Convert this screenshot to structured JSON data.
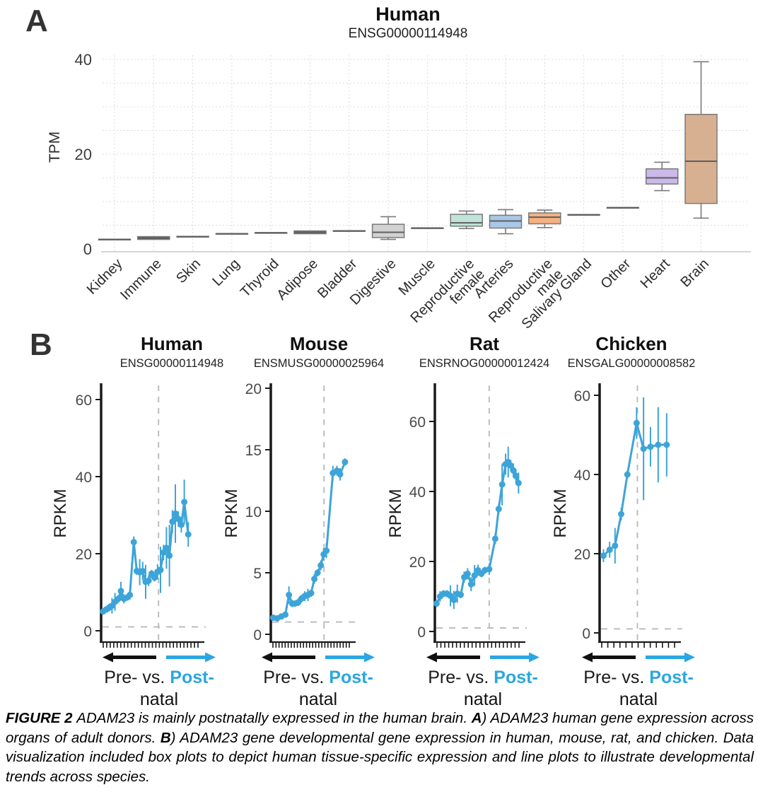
{
  "panel_a": {
    "label": "A"
  },
  "panel_b": {
    "label": "B",
    "pre_label": "Pre-",
    "vs_label": "vs.",
    "post_label": "Post-",
    "natal_label": "natal"
  },
  "colors": {
    "line_blue": "#3da4d8",
    "post_blue": "#2ba6e2",
    "grid": "#dcdcdc",
    "dash_gray": "#bdbdbd",
    "axis_dark": "#1a1a1a",
    "box_border": "#7a7a7a",
    "heart_purple": "#cbb9ea",
    "brain_tan": "#d7b091",
    "repro_female_teal": "#bfe5da",
    "arteries_blue": "#a9c7e6",
    "repro_male_orange": "#f4b183"
  },
  "caption": {
    "segments": [
      {
        "t": "FIGURE 2 ",
        "b": true
      },
      {
        "t": "ADAM23 is mainly postnatally expressed in the human brain. ",
        "b": false
      },
      {
        "t": "A",
        "b": true
      },
      {
        "t": ") ADAM23 human gene expression across organs of adult donors. ",
        "b": false
      },
      {
        "t": "B",
        "b": true
      },
      {
        "t": ") ADAM23 gene developmental gene expression in human, mouse, rat, and chicken. Data visualization included box plots to depict human tissue-specific expression and line plots to illustrate developmental trends across species.",
        "b": false
      }
    ]
  },
  "chart_data": [
    {
      "type": "box",
      "title": "Human",
      "subtitle": "ENSG00000114948",
      "ylabel": "TPM",
      "yticks": [
        0,
        20,
        40
      ],
      "ylim": [
        0,
        42
      ],
      "grid": true,
      "categories": [
        "Kidney",
        "Immune",
        "Skin",
        "Lung",
        "Thyroid",
        "Adipose",
        "Bladder",
        "Digestive",
        "Muscle",
        "Reproductive\nfemale",
        "Arteries",
        "Reproductive\nmale",
        "Salivary Gland",
        "Other",
        "Heart",
        "Brain"
      ],
      "boxes": [
        {
          "name": "Kidney",
          "lo": 1.9,
          "q1": 1.95,
          "med": 2.0,
          "q3": 2.05,
          "hi": 2.1,
          "fill": "#8f8f8f"
        },
        {
          "name": "Immune",
          "lo": 1.9,
          "q1": 2.0,
          "med": 2.3,
          "q3": 2.6,
          "hi": 2.7,
          "fill": "#5f5f5f"
        },
        {
          "name": "Skin",
          "lo": 2.5,
          "q1": 2.55,
          "med": 2.6,
          "q3": 2.65,
          "hi": 2.7,
          "fill": "#8f8f8f"
        },
        {
          "name": "Lung",
          "lo": 3.1,
          "q1": 3.15,
          "med": 3.2,
          "q3": 3.25,
          "hi": 3.3,
          "fill": "#8f8f8f"
        },
        {
          "name": "Thyroid",
          "lo": 3.3,
          "q1": 3.35,
          "med": 3.4,
          "q3": 3.45,
          "hi": 3.5,
          "fill": "#8f8f8f"
        },
        {
          "name": "Adipose",
          "lo": 3.1,
          "q1": 3.2,
          "med": 3.5,
          "q3": 3.8,
          "hi": 3.9,
          "fill": "#5f5f5f"
        },
        {
          "name": "Bladder",
          "lo": 3.7,
          "q1": 3.75,
          "med": 3.8,
          "q3": 3.85,
          "hi": 3.9,
          "fill": "#8f8f8f"
        },
        {
          "name": "Digestive",
          "lo": 2.0,
          "q1": 2.4,
          "med": 3.5,
          "q3": 5.2,
          "hi": 6.8,
          "fill": "#d2d2d2"
        },
        {
          "name": "Muscle",
          "lo": 4.3,
          "q1": 4.35,
          "med": 4.4,
          "q3": 4.45,
          "hi": 4.5,
          "fill": "#8f8f8f"
        },
        {
          "name": "Reproductive female",
          "lo": 4.3,
          "q1": 4.8,
          "med": 5.5,
          "q3": 7.3,
          "hi": 8.0,
          "fill": "#bfe5da"
        },
        {
          "name": "Arteries",
          "lo": 3.2,
          "q1": 4.4,
          "med": 5.9,
          "q3": 7.1,
          "hi": 8.3,
          "fill": "#a9c7e6"
        },
        {
          "name": "Reproductive male",
          "lo": 4.5,
          "q1": 5.3,
          "med": 6.7,
          "q3": 7.6,
          "hi": 8.2,
          "fill": "#f4b183"
        },
        {
          "name": "Salivary Gland",
          "lo": 7.1,
          "q1": 7.15,
          "med": 7.2,
          "q3": 7.25,
          "hi": 7.3,
          "fill": "#8f8f8f"
        },
        {
          "name": "Other",
          "lo": 8.6,
          "q1": 8.65,
          "med": 8.7,
          "q3": 8.75,
          "hi": 8.8,
          "fill": "#8f8f8f"
        },
        {
          "name": "Heart",
          "lo": 12.3,
          "q1": 13.7,
          "med": 15.0,
          "q3": 16.9,
          "hi": 18.3,
          "fill": "#cbb9ea"
        },
        {
          "name": "Brain",
          "lo": 6.5,
          "q1": 9.6,
          "med": 18.5,
          "q3": 28.4,
          "hi": 39.5,
          "fill": "#d7b091"
        }
      ]
    },
    {
      "type": "line",
      "species": "Human",
      "title": "Human",
      "subtitle": "ENSG00000114948",
      "ylabel": "RPKM",
      "yticks": [
        0,
        20,
        40,
        60
      ],
      "ylim": [
        -3,
        64
      ],
      "xaxis": {
        "n_ticks": 28,
        "birth_line_frac": 0.58,
        "baseline_dash_y": 1
      },
      "point_format": "[x_fraction, rpkm, stderr]",
      "points": [
        [
          0.02,
          5,
          0.8
        ],
        [
          0.05,
          5.5,
          0.8
        ],
        [
          0.08,
          6,
          1
        ],
        [
          0.11,
          6.5,
          2
        ],
        [
          0.14,
          7.5,
          2.3
        ],
        [
          0.17,
          8.2,
          1
        ],
        [
          0.2,
          10.3,
          2.4
        ],
        [
          0.23,
          8.3,
          1.2
        ],
        [
          0.26,
          8.6,
          0.8
        ],
        [
          0.29,
          9.3,
          1.2
        ],
        [
          0.33,
          23,
          1.5
        ],
        [
          0.36,
          15.5,
          1
        ],
        [
          0.39,
          15.2,
          3.4
        ],
        [
          0.42,
          15.5,
          2.4
        ],
        [
          0.45,
          12.7,
          4.4
        ],
        [
          0.48,
          13,
          1.4
        ],
        [
          0.51,
          14.8,
          1
        ],
        [
          0.54,
          13.8,
          1
        ],
        [
          0.57,
          15.3,
          2
        ],
        [
          0.6,
          15.8,
          6
        ],
        [
          0.63,
          20.3,
          2
        ],
        [
          0.66,
          21.5,
          5.4
        ],
        [
          0.69,
          19.5,
          8
        ],
        [
          0.72,
          28.3,
          3
        ],
        [
          0.75,
          30.4,
          7.6
        ],
        [
          0.78,
          29,
          2
        ],
        [
          0.81,
          27.5,
          2
        ],
        [
          0.84,
          33.4,
          5.8
        ],
        [
          0.88,
          25,
          3.2
        ]
      ]
    },
    {
      "type": "line",
      "species": "Mouse",
      "title": "Mouse",
      "subtitle": "ENSMUSG00000025964",
      "ylabel": "RPKM",
      "yticks": [
        0,
        5,
        10,
        15,
        20
      ],
      "ylim": [
        -0.7,
        21
      ],
      "xaxis": {
        "n_ticks": 26,
        "birth_line_frac": 0.66,
        "baseline_dash_y": 1
      },
      "point_format": "[x_fraction, rpkm, stderr]",
      "points": [
        [
          0.03,
          1.35,
          0.15
        ],
        [
          0.08,
          1.3,
          0.1
        ],
        [
          0.13,
          1.45,
          0.15
        ],
        [
          0.18,
          1.6,
          0.2
        ],
        [
          0.225,
          3.2,
          0.7
        ],
        [
          0.265,
          2.5,
          0.3
        ],
        [
          0.3,
          2.5,
          0.25
        ],
        [
          0.34,
          2.6,
          0.3
        ],
        [
          0.38,
          2.9,
          0.3
        ],
        [
          0.42,
          3.1,
          0.4
        ],
        [
          0.46,
          3.2,
          0.5
        ],
        [
          0.5,
          3.35,
          0.3
        ],
        [
          0.54,
          4.5,
          0.4
        ],
        [
          0.58,
          5.0,
          0.3
        ],
        [
          0.62,
          5.6,
          0.4
        ],
        [
          0.655,
          6.5,
          0.5
        ],
        [
          0.69,
          6.8,
          0.6
        ],
        [
          0.77,
          13.1,
          0.6
        ],
        [
          0.82,
          13.3,
          0.4
        ],
        [
          0.86,
          13.0,
          0.5
        ],
        [
          0.92,
          14.0,
          0.3
        ]
      ]
    },
    {
      "type": "line",
      "species": "Rat",
      "title": "Rat",
      "subtitle": "ENSRNOG00000012424",
      "ylabel": "RPKM",
      "yticks": [
        0,
        20,
        40,
        60
      ],
      "ylim": [
        -3,
        71
      ],
      "xaxis": {
        "n_ticks": 22,
        "birth_line_frac": 0.63,
        "baseline_dash_y": 1
      },
      "point_format": "[x_fraction, rpkm, stderr]",
      "points": [
        [
          0.02,
          8,
          1
        ],
        [
          0.06,
          10,
          1.5
        ],
        [
          0.1,
          10.8,
          1
        ],
        [
          0.14,
          10.8,
          1
        ],
        [
          0.18,
          10.2,
          3
        ],
        [
          0.22,
          9,
          2.6
        ],
        [
          0.26,
          10.8,
          2.6
        ],
        [
          0.3,
          10.5,
          1
        ],
        [
          0.34,
          15.5,
          1.6
        ],
        [
          0.38,
          16.5,
          1.6
        ],
        [
          0.42,
          13.5,
          2
        ],
        [
          0.46,
          16,
          3
        ],
        [
          0.5,
          17.5,
          1.6
        ],
        [
          0.54,
          16.5,
          1
        ],
        [
          0.58,
          17.5,
          1
        ],
        [
          0.63,
          17.8,
          1.6
        ],
        [
          0.7,
          26.5,
          1.6
        ],
        [
          0.74,
          35,
          1.6
        ],
        [
          0.78,
          42,
          6
        ],
        [
          0.82,
          47.8,
          3
        ],
        [
          0.85,
          48.4,
          4.4
        ],
        [
          0.88,
          47.4,
          1.6
        ],
        [
          0.91,
          46,
          2
        ],
        [
          0.94,
          44.4,
          2
        ],
        [
          0.97,
          42.4,
          3
        ]
      ]
    },
    {
      "type": "line",
      "species": "Chicken",
      "title": "Chicken",
      "subtitle": "ENSGALG00000008582",
      "ylabel": "RPKM",
      "yticks": [
        0,
        20,
        40,
        60
      ],
      "ylim": [
        -2.5,
        63
      ],
      "xaxis": {
        "n_ticks": 13,
        "birth_line_frac": 0.49,
        "baseline_dash_y": 1
      },
      "point_format": "[x_fraction, rpkm, stderr]",
      "points": [
        [
          0.05,
          19.5,
          1.6
        ],
        [
          0.13,
          21,
          2
        ],
        [
          0.2,
          22,
          4.5
        ],
        [
          0.28,
          30,
          1.6
        ],
        [
          0.36,
          40,
          1
        ],
        [
          0.48,
          53,
          4
        ],
        [
          0.57,
          46.5,
          13
        ],
        [
          0.66,
          47,
          5
        ],
        [
          0.76,
          47.5,
          9.5
        ],
        [
          0.87,
          47.5,
          8
        ]
      ]
    }
  ]
}
